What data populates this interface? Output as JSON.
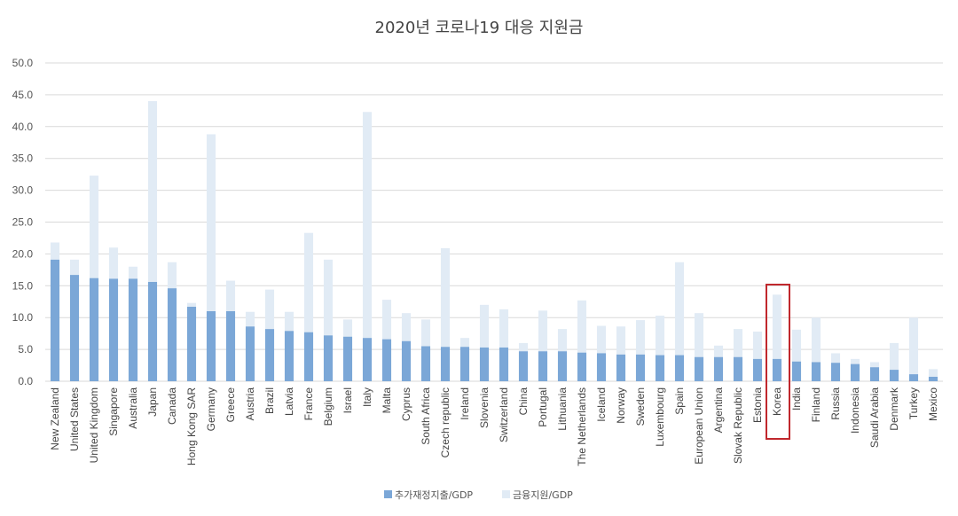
{
  "chart_data": {
    "type": "bar",
    "stacked": true,
    "title": "2020년 코로나19 대응 지원금",
    "xlabel": "",
    "ylabel": "",
    "ylim": [
      0,
      50
    ],
    "yticks": [
      "0.0",
      "5.0",
      "10.0",
      "15.0",
      "20.0",
      "25.0",
      "30.0",
      "35.0",
      "40.0",
      "45.0",
      "50.0"
    ],
    "grid": true,
    "legend_position": "bottom",
    "highlight": "Korea",
    "highlight_color": "#c0282d",
    "categories": [
      "New Zealand",
      "United States",
      "United Kingdom",
      "Singapore",
      "Australia",
      "Japan",
      "Canada",
      "Hong Kong SAR",
      "Germany",
      "Greece",
      "Austria",
      "Brazil",
      "Latvia",
      "France",
      "Belgium",
      "Israel",
      "Italy",
      "Malta",
      "Cyprus",
      "South Africa",
      "Czech republic",
      "Ireland",
      "Slovenia",
      "Switzerland",
      "China",
      "Portugal",
      "Lithuania",
      "The Netherlands",
      "Iceland",
      "Norway",
      "Sweden",
      "Luxembourg",
      "Spain",
      "European Union",
      "Argentina",
      "Slovak Republic",
      "Estonia",
      "Korea",
      "India",
      "Finland",
      "Russia",
      "Indonesia",
      "Saudi Arabia",
      "Denmark",
      "Turkey",
      "Mexico"
    ],
    "series": [
      {
        "name": "추가재정지출/GDP",
        "color": "#7ba7d7",
        "values": [
          19.1,
          16.7,
          16.2,
          16.1,
          16.1,
          15.6,
          14.6,
          11.7,
          11.0,
          11.0,
          8.6,
          8.2,
          7.9,
          7.7,
          7.2,
          7.0,
          6.8,
          6.6,
          6.3,
          5.5,
          5.4,
          5.4,
          5.3,
          5.3,
          4.7,
          4.7,
          4.7,
          4.5,
          4.4,
          4.2,
          4.2,
          4.1,
          4.1,
          3.8,
          3.8,
          3.8,
          3.5,
          3.5,
          3.1,
          3.0,
          2.9,
          2.7,
          2.2,
          1.8,
          1.1,
          0.7
        ]
      },
      {
        "name": "금융지원/GDP",
        "color": "#e1ebf5",
        "values": [
          2.7,
          2.4,
          16.1,
          4.9,
          1.9,
          28.4,
          4.1,
          0.6,
          27.8,
          4.8,
          2.3,
          6.2,
          3.0,
          15.6,
          11.9,
          2.7,
          35.5,
          6.2,
          4.4,
          4.2,
          15.5,
          1.4,
          6.7,
          6.0,
          1.3,
          6.4,
          3.5,
          8.2,
          4.3,
          4.4,
          5.4,
          6.2,
          14.6,
          6.9,
          1.8,
          4.4,
          4.3,
          10.1,
          5.0,
          7.0,
          1.5,
          0.8,
          0.8,
          4.2,
          8.9,
          1.2
        ]
      }
    ]
  }
}
